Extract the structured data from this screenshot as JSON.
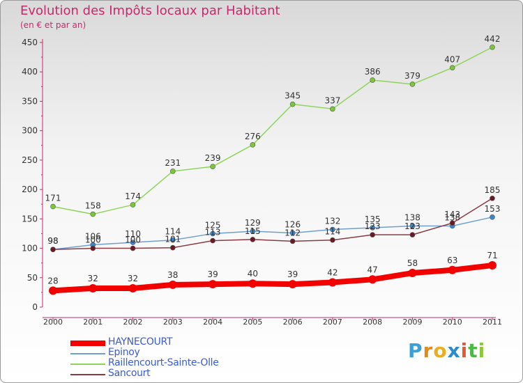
{
  "header": {
    "title": "Evolution des Impôts locaux par Habitant",
    "subtitle": "(en € et par an)"
  },
  "brand": {
    "logo_letters": [
      "P",
      "r",
      "o",
      "x",
      "i",
      "t",
      "i"
    ],
    "logo_colors": [
      "#3aa0d8",
      "#e08a1e",
      "#e8b020",
      "#2a8ad0",
      "#e05a3a",
      "#4cb848",
      "#8ac83a"
    ]
  },
  "chart_data": {
    "type": "line",
    "title": "Evolution des Impôts locaux par Habitant",
    "subtitle": "(en € et par an)",
    "x": [
      "2000",
      "2001",
      "2002",
      "2003",
      "2004",
      "2005",
      "2006",
      "2007",
      "2008",
      "2009",
      "2010",
      "2011"
    ],
    "ylim": [
      0,
      450
    ],
    "yticks": [
      "0",
      "50",
      "100",
      "150",
      "200",
      "250",
      "300",
      "350",
      "400",
      "450"
    ],
    "grid": false,
    "legend_position": "bottom-left",
    "series": [
      {
        "name": "Raillencourt-Sainte-Olle",
        "color": "#8fd45a",
        "marker": "#7cc63a",
        "values": [
          171,
          158,
          174,
          231,
          239,
          276,
          345,
          337,
          386,
          379,
          407,
          442
        ]
      },
      {
        "name": "Epinoy",
        "color": "#6f9fd0",
        "marker": "#3f86c8",
        "values": [
          98,
          106,
          110,
          114,
          125,
          129,
          126,
          132,
          135,
          138,
          138,
          153
        ]
      },
      {
        "name": "Sancourt",
        "color": "#8a3a42",
        "marker": "#6a1a24",
        "values": [
          98,
          100,
          100,
          101,
          113,
          115,
          112,
          114,
          123,
          123,
          143,
          185
        ]
      },
      {
        "name": "HAYNECOURT",
        "color": "#f20000",
        "marker": "#f20000",
        "values": [
          28,
          32,
          32,
          38,
          39,
          40,
          39,
          42,
          47,
          58,
          63,
          71
        ]
      }
    ],
    "legend": [
      "HAYNECOURT",
      "Epinoy",
      "Raillencourt-Sainte-Olle",
      "Sancourt"
    ]
  }
}
